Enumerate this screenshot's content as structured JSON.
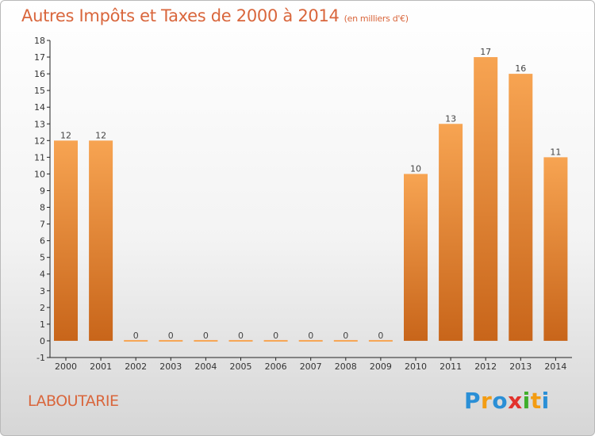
{
  "title": "Autres Impôts et Taxes de 2000 à 2014",
  "subtitle": "(en milliers d'€)",
  "commune": "LABOUTARIE",
  "logo": {
    "letters": [
      "P",
      "r",
      "o",
      "x",
      "i",
      "t",
      "i"
    ],
    "colors": [
      "#2a8fd6",
      "#f39c12",
      "#2a8fd6",
      "#e2322c",
      "#3fae2a",
      "#f39c12",
      "#2a8fd6"
    ]
  },
  "colors": {
    "bar_top": "#f7a452",
    "bar_bottom": "#c8651a",
    "title": "#d9663c",
    "axis": "#222222"
  },
  "chart_data": {
    "type": "bar",
    "categories": [
      "2000",
      "2001",
      "2002",
      "2003",
      "2004",
      "2005",
      "2006",
      "2007",
      "2008",
      "2009",
      "2010",
      "2011",
      "2012",
      "2013",
      "2014"
    ],
    "values": [
      12,
      12,
      0,
      0,
      0,
      0,
      0,
      0,
      0,
      0,
      10,
      13,
      17,
      16,
      11
    ],
    "data_labels": [
      "12",
      "12",
      "0",
      "0",
      "0",
      "0",
      "0",
      "0",
      "0",
      "0",
      "10",
      "13",
      "17",
      "16",
      "11"
    ],
    "title": "Autres Impôts et Taxes de 2000 à 2014",
    "subtitle": "(en milliers d'€)",
    "ylim": [
      -1,
      18
    ],
    "yticks": [
      "-1",
      "0",
      "1",
      "2",
      "3",
      "4",
      "5",
      "6",
      "7",
      "8",
      "9",
      "10",
      "11",
      "12",
      "13",
      "14",
      "15",
      "16",
      "17",
      "18"
    ],
    "grid": false,
    "legend": "none"
  }
}
